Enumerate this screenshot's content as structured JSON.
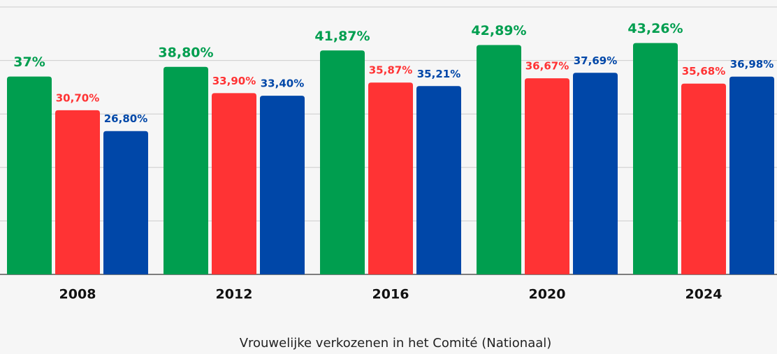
{
  "chart_data": {
    "type": "bar",
    "xlabel": "Vrouwelijke verkozenen in het Comité (Nationaal)",
    "categories": [
      "2008",
      "2012",
      "2016",
      "2020",
      "2024"
    ],
    "series": [
      {
        "color": "#009e4f",
        "values": [
          37,
          38.8,
          41.87,
          42.89,
          43.26
        ],
        "value_labels": [
          "37%",
          "38,80%",
          "41,87%",
          "42,89%",
          "43,26%"
        ]
      },
      {
        "color": "#ff3334",
        "values": [
          30.7,
          33.9,
          35.87,
          36.67,
          35.68
        ],
        "value_labels": [
          "30,70%",
          "33,90%",
          "35,87%",
          "36,67%",
          "35,68%"
        ]
      },
      {
        "color": "#0047a8",
        "values": [
          26.8,
          33.4,
          35.21,
          37.69,
          36.98
        ],
        "value_labels": [
          "26,80%",
          "33,40%",
          "35,21%",
          "37,69%",
          "36,98%"
        ]
      }
    ],
    "ylim": [
      0,
      50
    ],
    "yticks": [
      0,
      10,
      20,
      30,
      40,
      50
    ],
    "grid": true
  }
}
